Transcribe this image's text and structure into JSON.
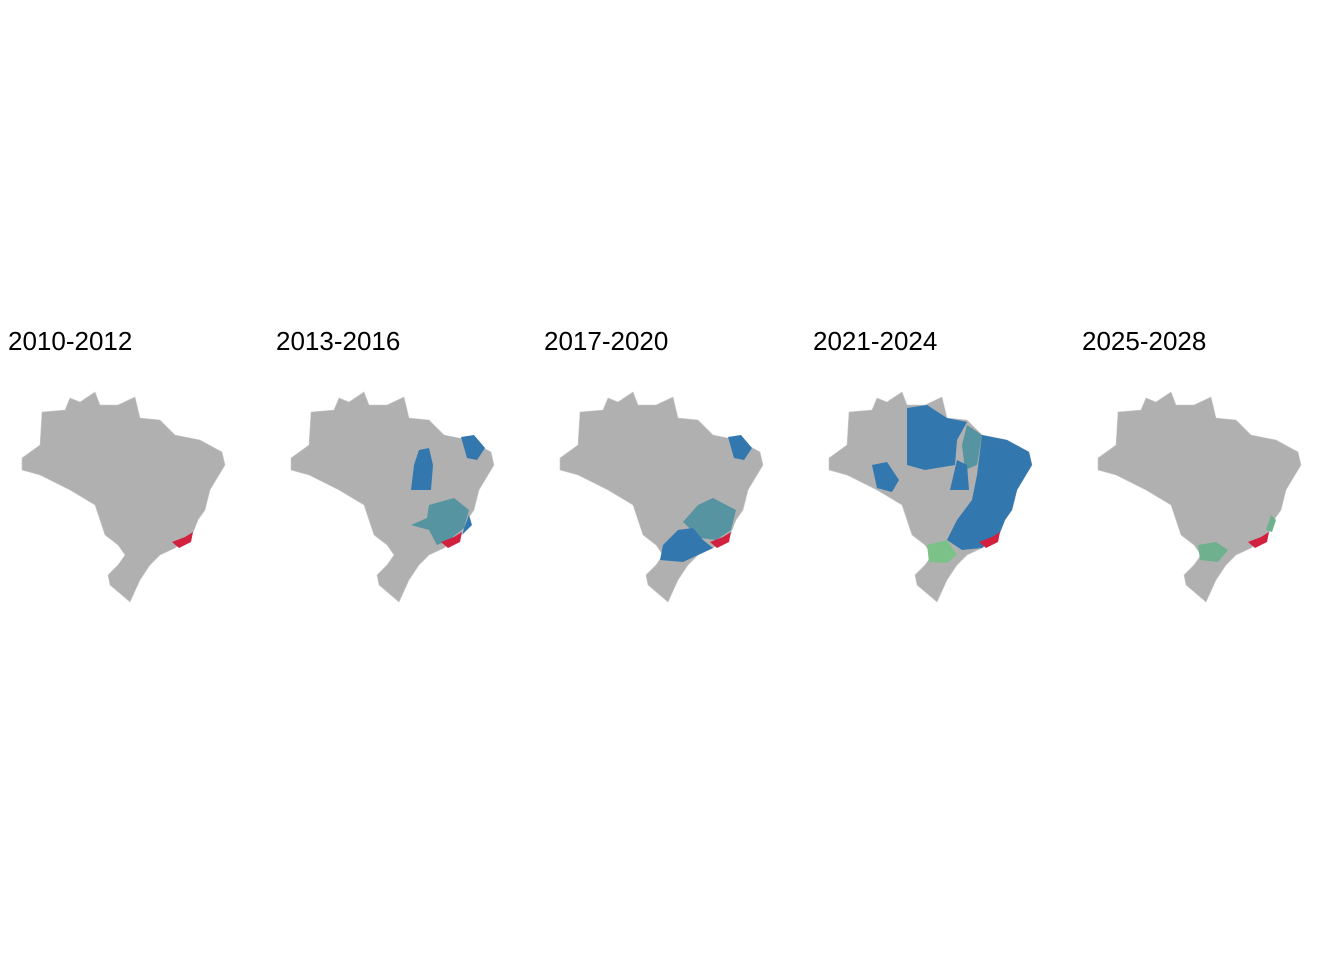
{
  "panels": [
    {
      "title": "2010-2012"
    },
    {
      "title": "2013-2016"
    },
    {
      "title": "2017-2020"
    },
    {
      "title": "2021-2024"
    },
    {
      "title": "2025-2028"
    }
  ]
}
